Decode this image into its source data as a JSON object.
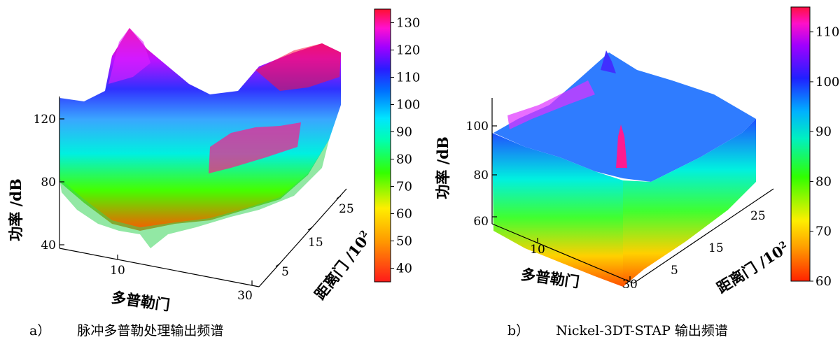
{
  "panels": [
    {
      "id": "a",
      "caption_letter": "a）",
      "caption_text": "脉冲多普勒处理输出频谱",
      "axes": {
        "zlabel": "功率 /dB",
        "xlabel": "多普勒门",
        "ylabel": "距离门 /10",
        "ylabel_sup": "2"
      },
      "z_ticks": [
        "40",
        "80",
        "120"
      ],
      "x_ticks": [
        "10",
        "30"
      ],
      "y_ticks": [
        "5",
        "15",
        "25"
      ],
      "colorbar_ticks": [
        "40",
        "50",
        "60",
        "70",
        "80",
        "90",
        "100",
        "110",
        "120",
        "130"
      ]
    },
    {
      "id": "b",
      "caption_letter": "b）",
      "caption_text": "Nickel-3DT-STAP 输出频谱",
      "axes": {
        "zlabel": "功率 /dB",
        "xlabel": "多普勒门",
        "ylabel": "距离门 /10",
        "ylabel_sup": "2"
      },
      "z_ticks": [
        "60",
        "80",
        "100"
      ],
      "x_ticks": [
        "10",
        "30"
      ],
      "y_ticks": [
        "5",
        "15",
        "25"
      ],
      "colorbar_ticks": [
        "60",
        "70",
        "80",
        "90",
        "100",
        "110"
      ]
    }
  ],
  "chart_data": [
    {
      "type": "surface",
      "title": "脉冲多普勒处理输出频谱",
      "xlabel": "多普勒门",
      "ylabel": "距离门 /10^2",
      "zlabel": "功率 /dB",
      "xlim": [
        0,
        30
      ],
      "ylim": [
        0,
        28
      ],
      "zlim": [
        35,
        135
      ],
      "colorbar_range": [
        35,
        135
      ],
      "description_values": {
        "floor_level_dB": 92,
        "peak_levels_dB": [
          125,
          130,
          128
        ],
        "min_spikes_dB": 45
      }
    },
    {
      "type": "surface",
      "title": "Nickel-3DT-STAP 输出频谱",
      "xlabel": "多普勒门",
      "ylabel": "距离门 /10^2",
      "zlabel": "功率 /dB",
      "xlim": [
        0,
        30
      ],
      "ylim": [
        0,
        28
      ],
      "zlim": [
        58,
        115
      ],
      "colorbar_range": [
        60,
        115
      ],
      "description_values": {
        "floor_level_dB": 95,
        "target_peak_dB": 110,
        "clutter_ridge_dB": 108
      }
    }
  ]
}
